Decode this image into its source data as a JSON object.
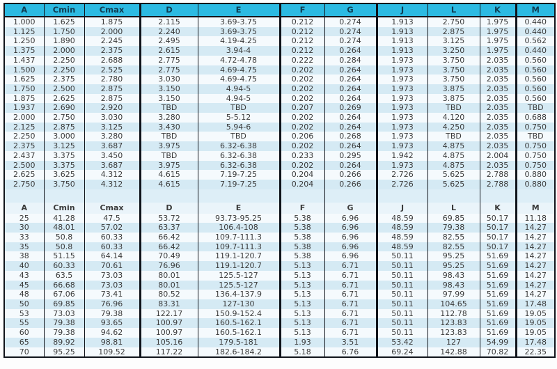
{
  "table": {
    "colors": {
      "page_bg": "#fdfdfd",
      "header_bg": "#2cbae2",
      "header_text": "#0e3c52",
      "header2_bg": "#eaf4fa",
      "gap_bg": "#ddeef7",
      "border": "#10141b",
      "stripe_light": "#f5fafd",
      "stripe_blue": "#d5eaf4",
      "text": "#3a3a3a"
    },
    "section1": {
      "header": [
        "A",
        "Cmin",
        "Cmax",
        "D",
        "E",
        "F",
        "G",
        "J",
        "L",
        "K",
        "M"
      ],
      "rows": [
        [
          "1.000",
          "1.625",
          "1.875",
          "2.115",
          "3.69-3.75",
          "0.212",
          "0.274",
          "1.913",
          "2.750",
          "1.975",
          "0.440"
        ],
        [
          "1.125",
          "1.750",
          "2.000",
          "2.240",
          "3.69-3.75",
          "0.212",
          "0.274",
          "1.913",
          "2.875",
          "1.975",
          "0.440"
        ],
        [
          "1.250",
          "1.890",
          "2.245",
          "2.495",
          "4.19-4.25",
          "0.212",
          "0.274",
          "1.913",
          "3.125",
          "1.975",
          "0.562"
        ],
        [
          "1.375",
          "2.000",
          "2.375",
          "2.615",
          "3.94-4",
          "0.212",
          "0.264",
          "1.913",
          "3.250",
          "1.975",
          "0.440"
        ],
        [
          "1.437",
          "2.250",
          "2.688",
          "2.775",
          "4.72-4.78",
          "0.222",
          "0.284",
          "1.973",
          "3.750",
          "2.035",
          "0.560"
        ],
        [
          "1.500",
          "2.250",
          "2.525",
          "2.775",
          "4.69-4.75",
          "0.202",
          "0.264",
          "1.973",
          "3.750",
          "2.035",
          "0.560"
        ],
        [
          "1.625",
          "2.375",
          "2.780",
          "3.030",
          "4.69-4.75",
          "0.202",
          "0.264",
          "1.973",
          "3.750",
          "2.035",
          "0.560"
        ],
        [
          "1.750",
          "2.500",
          "2.875",
          "3.150",
          "4.94-5",
          "0.202",
          "0.264",
          "1.973",
          "3.875",
          "2.035",
          "0.560"
        ],
        [
          "1.875",
          "2.625",
          "2.875",
          "3.150",
          "4.94-5",
          "0.202",
          "0.264",
          "1.973",
          "3.875",
          "2.035",
          "0.560"
        ],
        [
          "1.937",
          "2.690",
          "2.920",
          "TBD",
          "TBD",
          "0.207",
          "0.269",
          "1.973",
          "TBD",
          "2.035",
          "TBD"
        ],
        [
          "2.000",
          "2.750",
          "3.030",
          "3.280",
          "5-5.12",
          "0.202",
          "0.264",
          "1.973",
          "4.120",
          "2.035",
          "0.688"
        ],
        [
          "2.125",
          "2.875",
          "3.125",
          "3.430",
          "5.94-6",
          "0.202",
          "0.264",
          "1.973",
          "4.250",
          "2.035",
          "0.750"
        ],
        [
          "2.250",
          "3.000",
          "3.280",
          "TBD",
          "TBD",
          "0.206",
          "0.268",
          "1.973",
          "TBD",
          "2.035",
          "TBD"
        ],
        [
          "2.375",
          "3.125",
          "3.687",
          "3.975",
          "6.32-6.38",
          "0.202",
          "0.264",
          "1.973",
          "4.875",
          "2.035",
          "0.750"
        ],
        [
          "2.437",
          "3.375",
          "3.450",
          "TBD",
          "6.32-6.38",
          "0.233",
          "0.295",
          "1.942",
          "4.875",
          "2.004",
          "0.750"
        ],
        [
          "2.500",
          "3.375",
          "3.687",
          "3.975",
          "6.32-6.38",
          "0.202",
          "0.264",
          "1.973",
          "4.875",
          "2.035",
          "0.750"
        ],
        [
          "2.625",
          "3.625",
          "4.312",
          "4.615",
          "7.19-7.25",
          "0.204",
          "0.266",
          "2.726",
          "5.625",
          "2.788",
          "0.880"
        ],
        [
          "2.750",
          "3.750",
          "4.312",
          "4.615",
          "7.19-7.25",
          "0.204",
          "0.266",
          "2.726",
          "5.625",
          "2.788",
          "0.880"
        ]
      ]
    },
    "section2": {
      "header": [
        "A",
        "Cmin",
        "Cmax",
        "D",
        "E",
        "F",
        "G",
        "J",
        "L",
        "K",
        "M"
      ],
      "rows": [
        [
          "25",
          "41.28",
          "47.5",
          "53.72",
          "93.73-95.25",
          "5.38",
          "6.96",
          "48.59",
          "69.85",
          "50.17",
          "11.18"
        ],
        [
          "30",
          "48.01",
          "57.02",
          "63.37",
          "106.4-108",
          "5.38",
          "6.96",
          "48.59",
          "79.38",
          "50.17",
          "14.27"
        ],
        [
          "33",
          "50.8",
          "60.33",
          "66.42",
          "109.7-111.3",
          "5.38",
          "6.96",
          "48.59",
          "82.55",
          "50.17",
          "14.27"
        ],
        [
          "35",
          "50.8",
          "60.33",
          "66.42",
          "109.7-111.3",
          "5.38",
          "6.96",
          "48.59",
          "82.55",
          "50.17",
          "14.27"
        ],
        [
          "38",
          "51.15",
          "64.14",
          "70.49",
          "119.1-120.7",
          "5.38",
          "6.96",
          "50.11",
          "95.25",
          "51.69",
          "14.27"
        ],
        [
          "40",
          "60.33",
          "70.61",
          "76.96",
          "119.1-120.7",
          "5.13",
          "6.71",
          "50.11",
          "95.25",
          "51.69",
          "14.27"
        ],
        [
          "43",
          "63.5",
          "73.03",
          "80.01",
          "125.5-127",
          "5.13",
          "6.71",
          "50.11",
          "98.43",
          "51.69",
          "14.27"
        ],
        [
          "45",
          "66.68",
          "73.03",
          "80.01",
          "125.5-127",
          "5.13",
          "6.71",
          "50.11",
          "98.43",
          "51.69",
          "14.27"
        ],
        [
          "48",
          "67.06",
          "73.41",
          "80.52",
          "136.4-137.9",
          "5.13",
          "6.71",
          "50.11",
          "97.99",
          "51.69",
          "14.27"
        ],
        [
          "50",
          "69.85",
          "76.96",
          "83.31",
          "127-130",
          "5.13",
          "6.71",
          "50.11",
          "104.65",
          "51.69",
          "17.48"
        ],
        [
          "53",
          "73.03",
          "79.38",
          "122.17",
          "150.9-152.4",
          "5.13",
          "6.71",
          "50.11",
          "112.78",
          "51.69",
          "19.05"
        ],
        [
          "55",
          "79.38",
          "93.65",
          "100.97",
          "160.5-162.1",
          "5.13",
          "6.71",
          "50.11",
          "123.83",
          "51.69",
          "19.05"
        ],
        [
          "60",
          "79.38",
          "94.62",
          "100.97",
          "160.5-162.1",
          "5.13",
          "6.71",
          "50.11",
          "123.83",
          "51.69",
          "19.05"
        ],
        [
          "65",
          "89.92",
          "98.81",
          "105.16",
          "179.5-181",
          "1.93",
          "3.51",
          "53.42",
          "127",
          "54.99",
          "17.48"
        ],
        [
          "70",
          "95.25",
          "109.52",
          "117.22",
          "182.6-184.2",
          "5.18",
          "6.76",
          "69.24",
          "142.88",
          "70.82",
          "22.35"
        ]
      ]
    }
  }
}
